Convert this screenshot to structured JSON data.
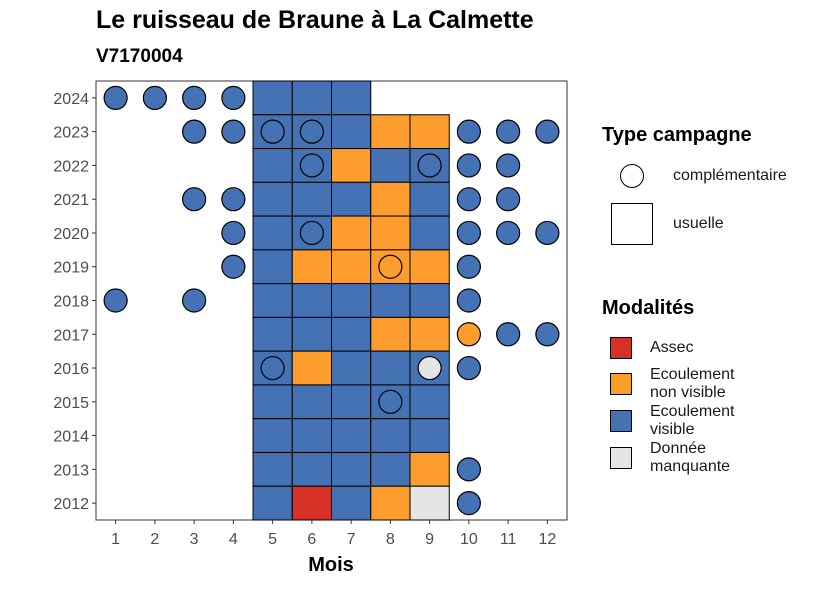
{
  "chart_data": {
    "type": "heatmap",
    "title": "Le ruisseau de Braune à La Calmette",
    "subtitle": "V7170004",
    "xlabel": "Mois",
    "ylabel": "",
    "x_ticks": [
      "1",
      "2",
      "3",
      "4",
      "5",
      "6",
      "7",
      "8",
      "9",
      "10",
      "11",
      "12"
    ],
    "y_ticks": [
      "2012",
      "2013",
      "2014",
      "2015",
      "2016",
      "2017",
      "2018",
      "2019",
      "2020",
      "2021",
      "2022",
      "2023",
      "2024"
    ],
    "categories_colors": {
      "Assec": "#d73027",
      "Ecoulement non visible": "#fd9d2e",
      "Ecoulement visible": "#4472b4",
      "Donnée manquante": "#e5e5e5"
    },
    "usuelle": [
      {
        "year": 2024,
        "months": [
          "Ecoulement visible",
          "Ecoulement visible",
          "Ecoulement visible",
          null,
          null
        ]
      },
      {
        "year": 2023,
        "months": [
          "Ecoulement visible",
          "Ecoulement visible",
          "Ecoulement visible",
          "Ecoulement non visible",
          "Ecoulement non visible"
        ]
      },
      {
        "year": 2022,
        "months": [
          "Ecoulement visible",
          "Ecoulement visible",
          "Ecoulement non visible",
          "Ecoulement visible",
          "Ecoulement visible"
        ]
      },
      {
        "year": 2021,
        "months": [
          "Ecoulement visible",
          "Ecoulement visible",
          "Ecoulement visible",
          "Ecoulement non visible",
          "Ecoulement visible"
        ]
      },
      {
        "year": 2020,
        "months": [
          "Ecoulement visible",
          "Ecoulement visible",
          "Ecoulement non visible",
          "Ecoulement non visible",
          "Ecoulement visible"
        ]
      },
      {
        "year": 2019,
        "months": [
          "Ecoulement visible",
          "Ecoulement non visible",
          "Ecoulement non visible",
          "Ecoulement non visible",
          "Ecoulement non visible"
        ]
      },
      {
        "year": 2018,
        "months": [
          "Ecoulement visible",
          "Ecoulement visible",
          "Ecoulement visible",
          "Ecoulement visible",
          "Ecoulement visible"
        ]
      },
      {
        "year": 2017,
        "months": [
          "Ecoulement visible",
          "Ecoulement visible",
          "Ecoulement visible",
          "Ecoulement non visible",
          "Ecoulement non visible"
        ]
      },
      {
        "year": 2016,
        "months": [
          "Ecoulement visible",
          "Ecoulement non visible",
          "Ecoulement visible",
          "Ecoulement visible",
          "Ecoulement visible"
        ]
      },
      {
        "year": 2015,
        "months": [
          "Ecoulement visible",
          "Ecoulement visible",
          "Ecoulement visible",
          "Ecoulement visible",
          "Ecoulement visible"
        ]
      },
      {
        "year": 2014,
        "months": [
          "Ecoulement visible",
          "Ecoulement visible",
          "Ecoulement visible",
          "Ecoulement visible",
          "Ecoulement visible"
        ]
      },
      {
        "year": 2013,
        "months": [
          "Ecoulement visible",
          "Ecoulement visible",
          "Ecoulement visible",
          "Ecoulement visible",
          "Ecoulement non visible"
        ]
      },
      {
        "year": 2012,
        "months": [
          "Ecoulement visible",
          "Assec",
          "Ecoulement visible",
          "Ecoulement non visible",
          "Donnée manquante"
        ]
      }
    ],
    "usuelle_months": [
      5,
      6,
      7,
      8,
      9
    ],
    "complementaire": [
      {
        "year": 2024,
        "month": 1,
        "value": "Ecoulement visible"
      },
      {
        "year": 2024,
        "month": 2,
        "value": "Ecoulement visible"
      },
      {
        "year": 2024,
        "month": 3,
        "value": "Ecoulement visible"
      },
      {
        "year": 2024,
        "month": 4,
        "value": "Ecoulement visible"
      },
      {
        "year": 2023,
        "month": 3,
        "value": "Ecoulement visible"
      },
      {
        "year": 2023,
        "month": 4,
        "value": "Ecoulement visible"
      },
      {
        "year": 2023,
        "month": 5,
        "value": "Ecoulement visible"
      },
      {
        "year": 2023,
        "month": 6,
        "value": "Ecoulement visible"
      },
      {
        "year": 2023,
        "month": 10,
        "value": "Ecoulement visible"
      },
      {
        "year": 2023,
        "month": 11,
        "value": "Ecoulement visible"
      },
      {
        "year": 2023,
        "month": 12,
        "value": "Ecoulement visible"
      },
      {
        "year": 2022,
        "month": 6,
        "value": "Ecoulement visible"
      },
      {
        "year": 2022,
        "month": 9,
        "value": "Ecoulement visible"
      },
      {
        "year": 2022,
        "month": 10,
        "value": "Ecoulement visible"
      },
      {
        "year": 2022,
        "month": 11,
        "value": "Ecoulement visible"
      },
      {
        "year": 2021,
        "month": 3,
        "value": "Ecoulement visible"
      },
      {
        "year": 2021,
        "month": 4,
        "value": "Ecoulement visible"
      },
      {
        "year": 2021,
        "month": 10,
        "value": "Ecoulement visible"
      },
      {
        "year": 2021,
        "month": 11,
        "value": "Ecoulement visible"
      },
      {
        "year": 2020,
        "month": 4,
        "value": "Ecoulement visible"
      },
      {
        "year": 2020,
        "month": 6,
        "value": "Ecoulement visible"
      },
      {
        "year": 2020,
        "month": 10,
        "value": "Ecoulement visible"
      },
      {
        "year": 2020,
        "month": 11,
        "value": "Ecoulement visible"
      },
      {
        "year": 2020,
        "month": 12,
        "value": "Ecoulement visible"
      },
      {
        "year": 2019,
        "month": 4,
        "value": "Ecoulement visible"
      },
      {
        "year": 2019,
        "month": 8,
        "value": "Ecoulement non visible"
      },
      {
        "year": 2019,
        "month": 10,
        "value": "Ecoulement visible"
      },
      {
        "year": 2018,
        "month": 1,
        "value": "Ecoulement visible"
      },
      {
        "year": 2018,
        "month": 3,
        "value": "Ecoulement visible"
      },
      {
        "year": 2018,
        "month": 10,
        "value": "Ecoulement visible"
      },
      {
        "year": 2017,
        "month": 10,
        "value": "Ecoulement non visible"
      },
      {
        "year": 2017,
        "month": 11,
        "value": "Ecoulement visible"
      },
      {
        "year": 2017,
        "month": 12,
        "value": "Ecoulement visible"
      },
      {
        "year": 2016,
        "month": 5,
        "value": "Ecoulement visible"
      },
      {
        "year": 2016,
        "month": 9,
        "value": "Donnée manquante"
      },
      {
        "year": 2016,
        "month": 10,
        "value": "Ecoulement visible"
      },
      {
        "year": 2015,
        "month": 8,
        "value": "Ecoulement visible"
      },
      {
        "year": 2013,
        "month": 10,
        "value": "Ecoulement visible"
      },
      {
        "year": 2012,
        "month": 10,
        "value": "Ecoulement visible"
      }
    ],
    "legend_placement": "right",
    "grid": false
  },
  "legend": {
    "type_title": "Type campagne",
    "type_items": [
      "complémentaire",
      "usuelle"
    ],
    "mod_title": "Modalités",
    "mod_items": [
      {
        "label": "Assec",
        "color": "#d73027"
      },
      {
        "label": "Ecoulement\nnon visible",
        "color": "#fd9d2e"
      },
      {
        "label": "Ecoulement\nvisible",
        "color": "#4472b4"
      },
      {
        "label": "Donnée\nmanquante",
        "color": "#e5e5e5"
      }
    ]
  }
}
